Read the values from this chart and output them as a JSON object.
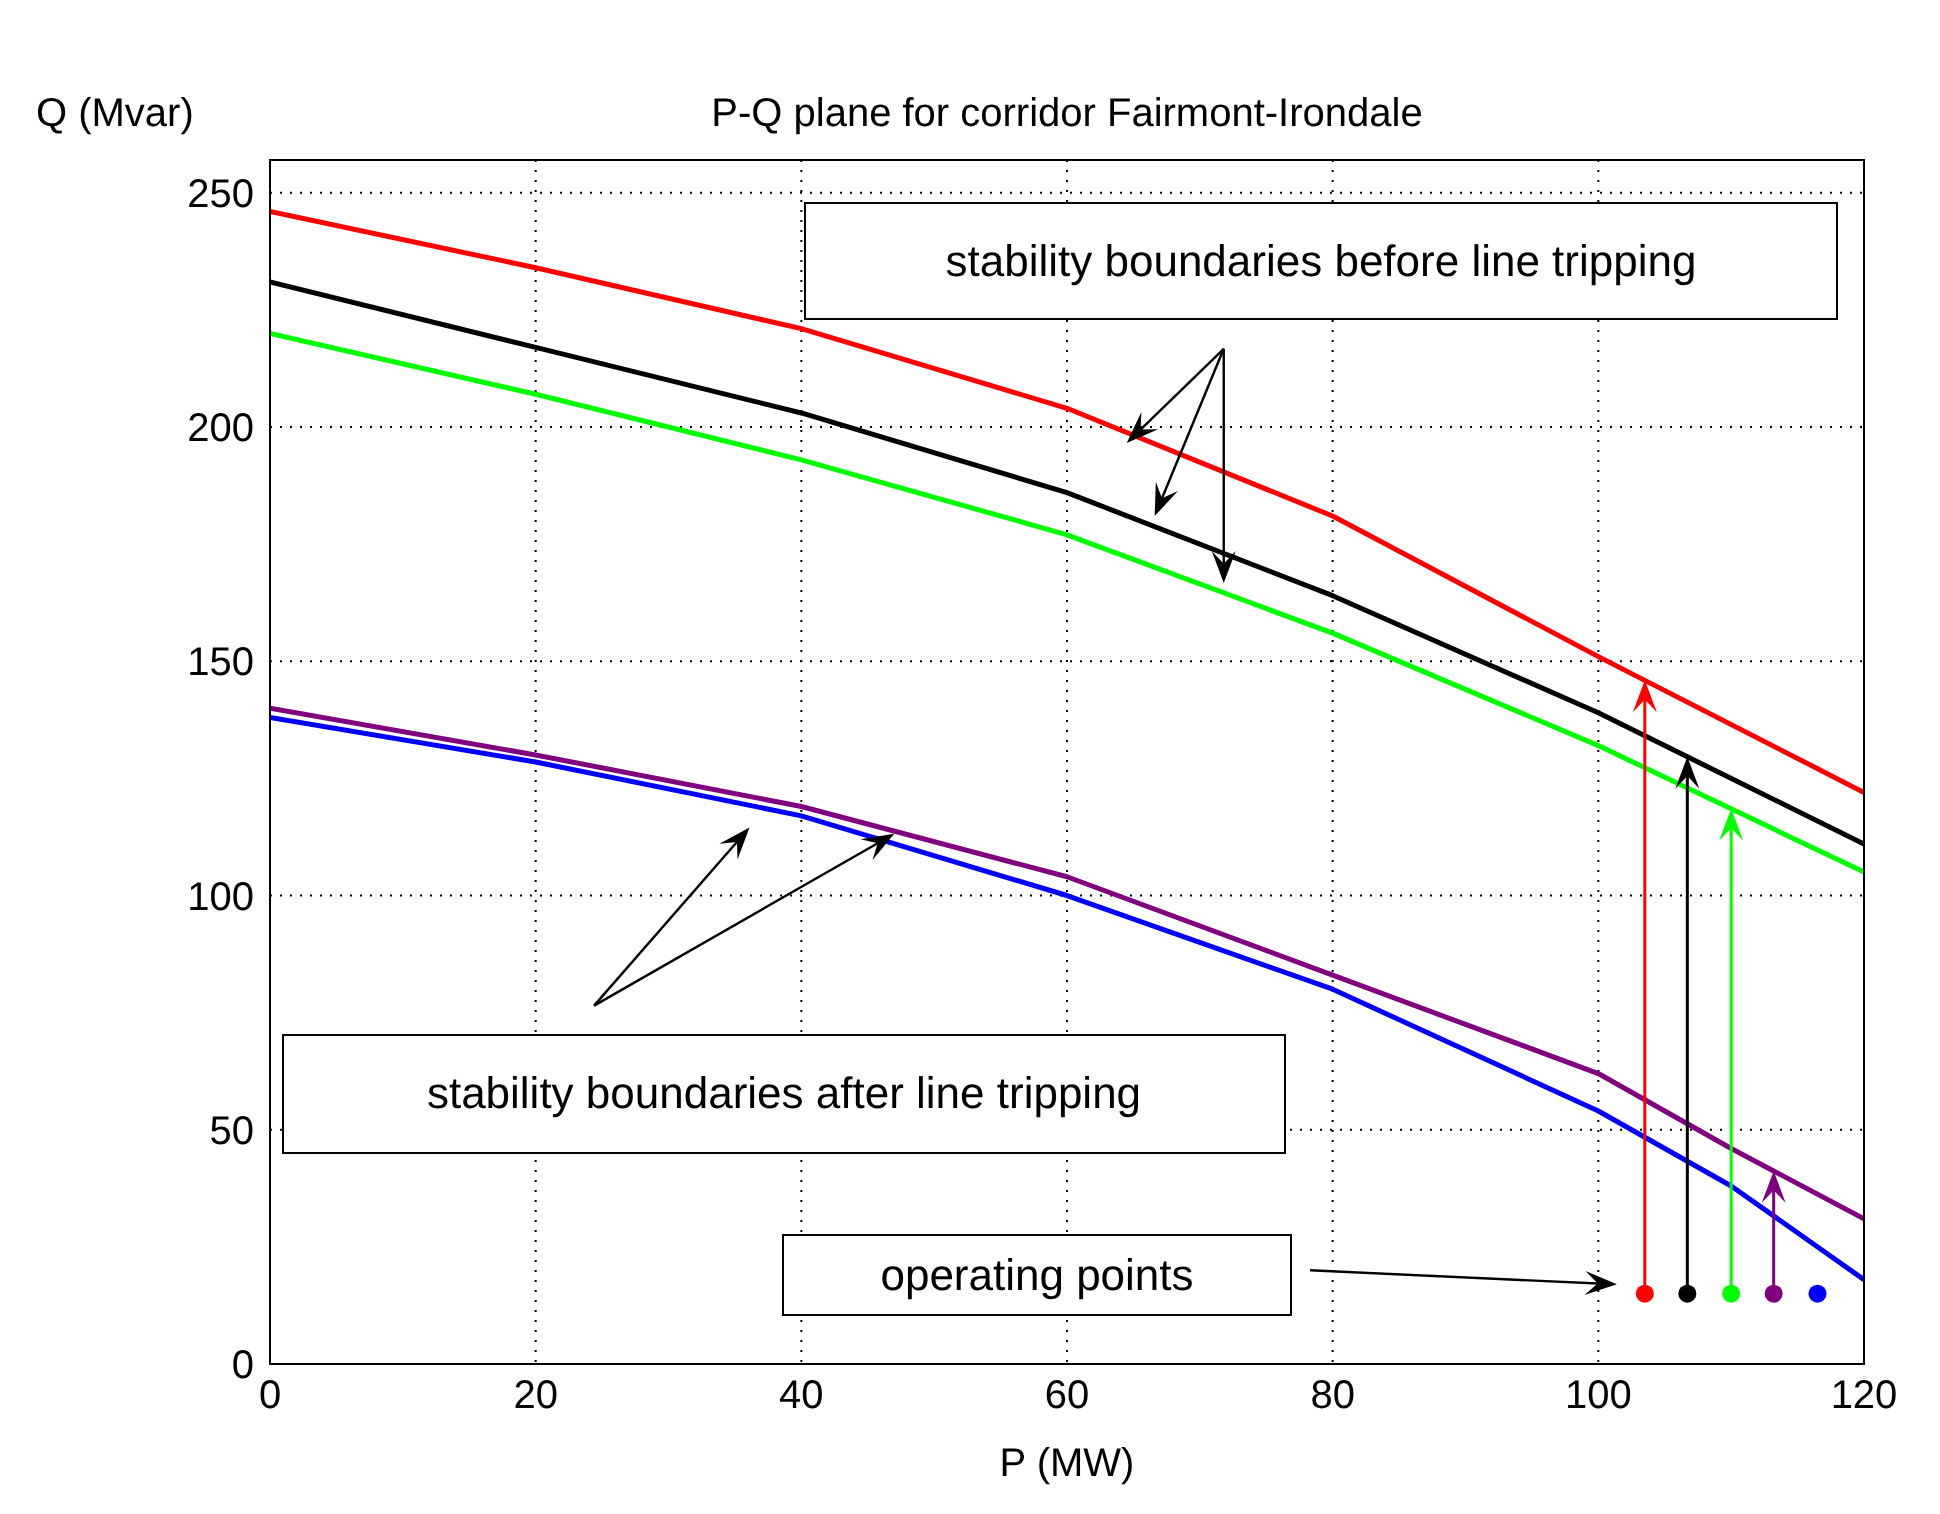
{
  "chart_data": {
    "type": "line",
    "title": "P-Q plane for corridor Fairmont-Irondale",
    "xlabel": "P (MW)",
    "ylabel": "Q (Mvar)",
    "xlim": [
      0,
      120
    ],
    "xticks": [
      0,
      20,
      40,
      60,
      80,
      100,
      120
    ],
    "ylim": [
      0,
      257
    ],
    "yticks": [
      0,
      50,
      100,
      150,
      200,
      250
    ],
    "grid": true,
    "annotations": [
      "stability boundaries before line tripping",
      "stability boundaries after line tripping",
      "operating points"
    ],
    "series": [
      {
        "color": "#ff0000",
        "x": [
          0,
          20,
          40,
          60,
          80,
          100,
          120
        ],
        "values": [
          246,
          234,
          221,
          204,
          181,
          151,
          122
        ]
      },
      {
        "color": "#000000",
        "x": [
          0,
          20,
          40,
          60,
          80,
          100,
          120
        ],
        "values": [
          231,
          217,
          203,
          186,
          164,
          139,
          111
        ]
      },
      {
        "color": "#00ff00",
        "x": [
          0,
          20,
          40,
          60,
          80,
          100,
          120
        ],
        "values": [
          220,
          207,
          193,
          177,
          156,
          132,
          105
        ]
      },
      {
        "color": "#800080",
        "x": [
          0,
          20,
          40,
          60,
          80,
          100,
          110,
          120
        ],
        "values": [
          140,
          130,
          119,
          104,
          83,
          62,
          46,
          31
        ]
      },
      {
        "color": "#0000ff",
        "x": [
          0,
          20,
          40,
          60,
          80,
          100,
          110,
          120
        ],
        "values": [
          138,
          128.5,
          117,
          100,
          80,
          54,
          38,
          18
        ]
      },
      {
        "type": "scatter",
        "x": [
          103.5,
          106.7,
          110,
          113.2,
          116.5
        ],
        "values": [
          15,
          15,
          15,
          15,
          15
        ],
        "colors": [
          "#ff0000",
          "#000000",
          "#00ff00",
          "#800080",
          "#0000ff"
        ]
      }
    ]
  }
}
